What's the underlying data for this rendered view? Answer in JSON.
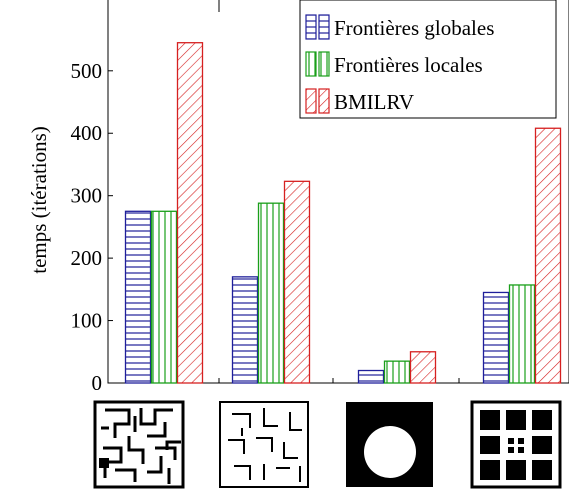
{
  "chart_data": {
    "type": "bar",
    "categories": [
      "",
      "",
      "",
      ""
    ],
    "series": [
      {
        "name": "Frontières globales",
        "values": [
          275,
          170,
          20,
          145
        ],
        "color": "#1f1f9a",
        "pattern": "horizontal-lines"
      },
      {
        "name": "Frontières locales",
        "values": [
          275,
          288,
          35,
          157
        ],
        "color": "#1a9f1a",
        "pattern": "vertical-lines"
      },
      {
        "name": "BMILRV",
        "values": [
          545,
          323,
          50,
          408
        ],
        "color": "#d62020",
        "pattern": "diagonal-lines"
      }
    ],
    "xlabel": "",
    "ylabel": "temps (itérations)",
    "ylim": [
      0,
      590
    ],
    "yticks": [
      0,
      100,
      200,
      300,
      400,
      500
    ],
    "legend": "top-right",
    "grid": false,
    "category_images": [
      "maze-icon",
      "sparse-maze-icon",
      "circle-in-square-icon",
      "grid-of-blocks-icon"
    ]
  }
}
